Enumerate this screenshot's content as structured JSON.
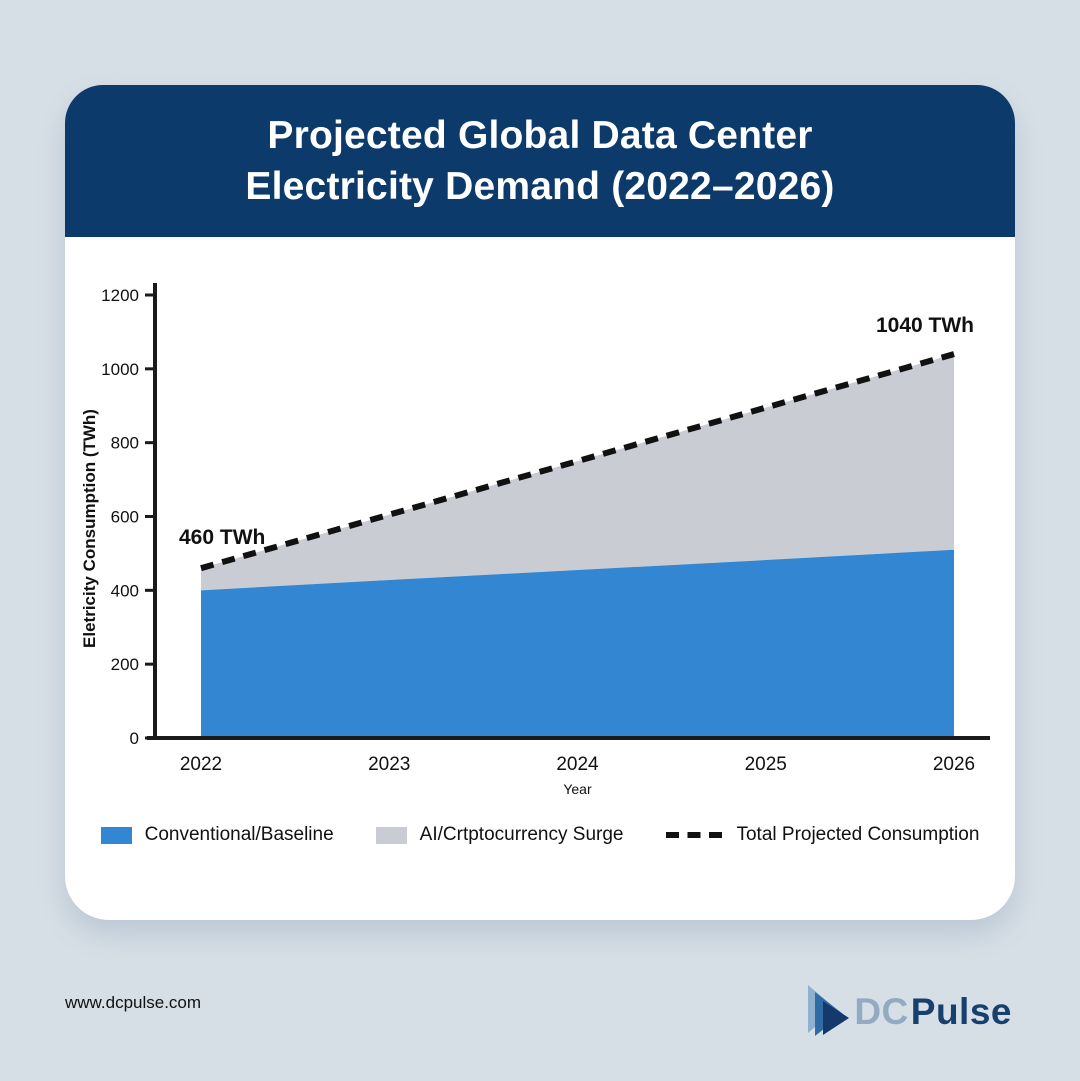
{
  "page": {
    "background_color": "#d7dfe6",
    "card_color": "#ffffff"
  },
  "header": {
    "title_line1": "Projected Global Data Center",
    "title_line2": "Electricity Demand (2022–2026)",
    "background_color": "#0c3a6a",
    "text_color": "#ffffff"
  },
  "chart_data": {
    "type": "area",
    "x": [
      2022,
      2023,
      2024,
      2025,
      2026
    ],
    "series": [
      {
        "name": "Conventional/Baseline",
        "style": "filled-area",
        "color": "#3386d1",
        "values": [
          400,
          428,
          455,
          482,
          510
        ]
      },
      {
        "name": "AI/Crtptocurrency Surge",
        "style": "stacked-area-between-baseline-and-total",
        "color": "#c9cdd3",
        "values": [
          60,
          177,
          295,
          413,
          530
        ]
      },
      {
        "name": "Total Projected Consumption",
        "style": "dashed-line",
        "color": "#111111",
        "values": [
          460,
          605,
          750,
          895,
          1040
        ]
      }
    ],
    "ylabel": "Eletricity Consumption (TWh)",
    "xlabel": "Year",
    "ylim": [
      0,
      1200
    ],
    "yticks": [
      0,
      200,
      400,
      600,
      800,
      1000,
      1200
    ],
    "grid": false,
    "legend_position": "bottom",
    "axis_color": "#1a1a1a",
    "annotations": [
      {
        "text": "460 TWh",
        "x": 2022,
        "y": 460
      },
      {
        "text": "1040 TWh",
        "x": 2026,
        "y": 1040
      }
    ]
  },
  "footer": {
    "url": "www.dcpulse.com",
    "logo_dc": "DC",
    "logo_pulse": "Pulse",
    "logo_dc_color": "#94aac2",
    "logo_pulse_color": "#17406f"
  }
}
